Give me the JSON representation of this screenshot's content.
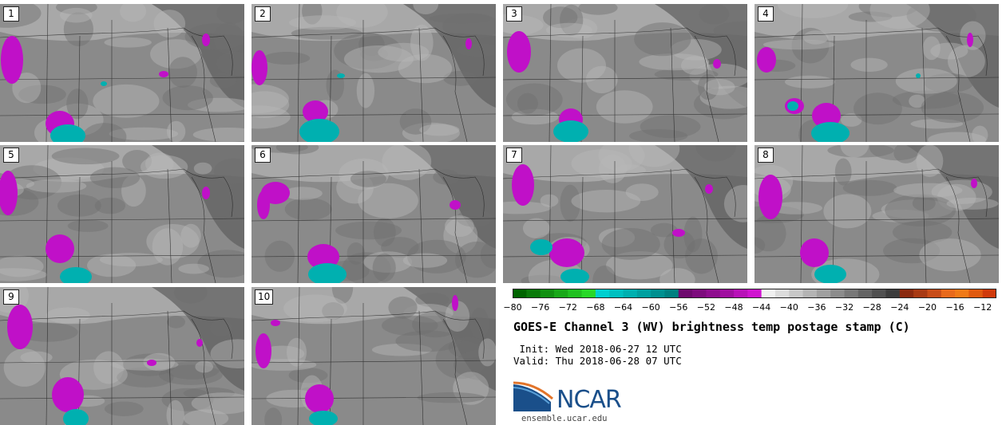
{
  "panels": [
    {
      "label": "1"
    },
    {
      "label": "2"
    },
    {
      "label": "3"
    },
    {
      "label": "4"
    },
    {
      "label": "5"
    },
    {
      "label": "6"
    },
    {
      "label": "7"
    },
    {
      "label": "8"
    },
    {
      "label": "9"
    },
    {
      "label": "10"
    }
  ],
  "colorbar": {
    "ticks": [
      "−80",
      "−76",
      "−72",
      "−68",
      "−64",
      "−60",
      "−56",
      "−52",
      "−48",
      "−44",
      "−40",
      "−36",
      "−32",
      "−28",
      "−24",
      "−20",
      "−16",
      "−12"
    ],
    "range": [
      -80,
      -10
    ],
    "bins": [
      {
        "from": -80,
        "to": -78,
        "color": "#006400"
      },
      {
        "from": -78,
        "to": -76,
        "color": "#0a7a0a"
      },
      {
        "from": -76,
        "to": -74,
        "color": "#119011"
      },
      {
        "from": -74,
        "to": -72,
        "color": "#18a818"
      },
      {
        "from": -72,
        "to": -70,
        "color": "#20c020"
      },
      {
        "from": -70,
        "to": -68,
        "color": "#28d828"
      },
      {
        "from": -68,
        "to": -66,
        "color": "#00d0d0"
      },
      {
        "from": -66,
        "to": -64,
        "color": "#00c0c0"
      },
      {
        "from": -64,
        "to": -62,
        "color": "#00b0b0"
      },
      {
        "from": -62,
        "to": -60,
        "color": "#00a0a0"
      },
      {
        "from": -60,
        "to": -58,
        "color": "#009090"
      },
      {
        "from": -58,
        "to": -56,
        "color": "#008080"
      },
      {
        "from": -56,
        "to": -54,
        "color": "#6e0a6e"
      },
      {
        "from": -54,
        "to": -52,
        "color": "#7d0c7d"
      },
      {
        "from": -52,
        "to": -50,
        "color": "#8e0e8e"
      },
      {
        "from": -50,
        "to": -48,
        "color": "#a010a0"
      },
      {
        "from": -48,
        "to": -46,
        "color": "#b812b8"
      },
      {
        "from": -46,
        "to": -44,
        "color": "#d014d0"
      },
      {
        "from": -44,
        "to": -42,
        "color": "#f0f0f0"
      },
      {
        "from": -42,
        "to": -40,
        "color": "#dcdcdc"
      },
      {
        "from": -40,
        "to": -38,
        "color": "#c8c8c8"
      },
      {
        "from": -38,
        "to": -36,
        "color": "#b4b4b4"
      },
      {
        "from": -36,
        "to": -34,
        "color": "#a0a0a0"
      },
      {
        "from": -34,
        "to": -32,
        "color": "#8c8c8c"
      },
      {
        "from": -32,
        "to": -30,
        "color": "#787878"
      },
      {
        "from": -30,
        "to": -28,
        "color": "#646464"
      },
      {
        "from": -28,
        "to": -26,
        "color": "#505050"
      },
      {
        "from": -26,
        "to": -24,
        "color": "#3c3c3c"
      },
      {
        "from": -24,
        "to": -22,
        "color": "#8b2a10"
      },
      {
        "from": -22,
        "to": -20,
        "color": "#a83a14"
      },
      {
        "from": -20,
        "to": -18,
        "color": "#c84c18"
      },
      {
        "from": -18,
        "to": -16,
        "color": "#e86a1c"
      },
      {
        "from": -16,
        "to": -14,
        "color": "#f07a18"
      },
      {
        "from": -14,
        "to": -12,
        "color": "#e05a10"
      },
      {
        "from": -12,
        "to": -10,
        "color": "#d03a0c"
      }
    ]
  },
  "title": "GOES-E Channel 3 (WV) brightness temp postage stamp (C)",
  "init_line": " Init: Wed 2018-06-27 12 UTC",
  "valid_line": "Valid: Thu 2018-06-28 07 UTC",
  "logo": {
    "word": "NCAR",
    "url": "ensemble.ucar.edu",
    "color": "#1a4f8a"
  },
  "map_colors": {
    "dry": "#6e6e6e",
    "mid": "#8a8a8a",
    "moist": "#b8b8b8",
    "cold_magenta": "#c010c8",
    "very_cold_teal": "#00b0b0",
    "border": "#1c1c1c"
  }
}
